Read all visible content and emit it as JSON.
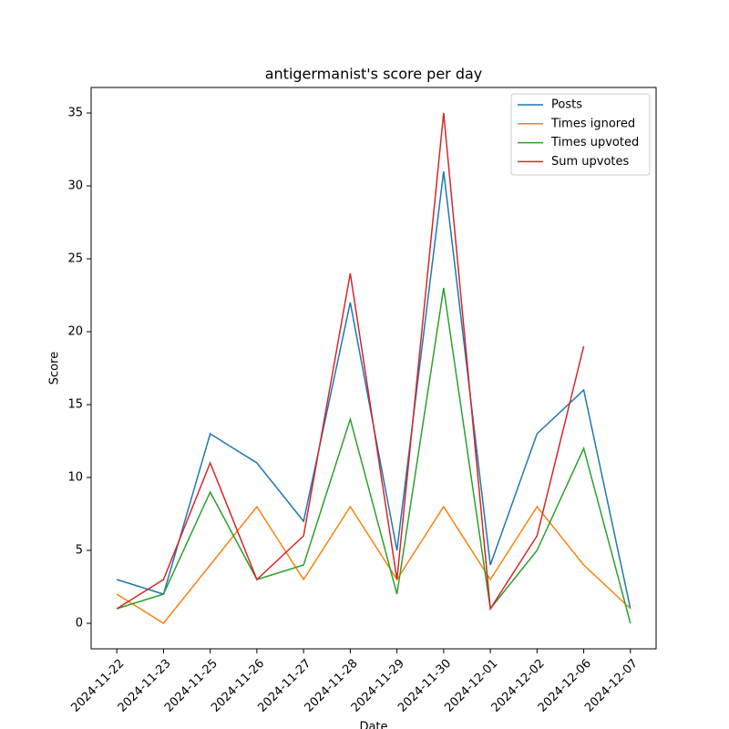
{
  "chart_data": {
    "type": "line",
    "title": "antigermanist's score per day",
    "xlabel": "Date",
    "ylabel": "Score",
    "categories": [
      "2024-11-22",
      "2024-11-23",
      "2024-11-25",
      "2024-11-26",
      "2024-11-27",
      "2024-11-28",
      "2024-11-29",
      "2024-11-30",
      "2024-12-01",
      "2024-12-02",
      "2024-12-06",
      "2024-12-07"
    ],
    "series": [
      {
        "name": "Posts",
        "color": "#1f77b4",
        "values": [
          3,
          2,
          13,
          11,
          7,
          22,
          5,
          31,
          4,
          13,
          16,
          1
        ]
      },
      {
        "name": "Times ignored",
        "color": "#ff7f0e",
        "values": [
          2,
          0,
          4,
          8,
          3,
          8,
          3,
          8,
          3,
          8,
          4,
          1
        ]
      },
      {
        "name": "Times upvoted",
        "color": "#2ca02c",
        "values": [
          1,
          2,
          9,
          3,
          4,
          14,
          2,
          23,
          1,
          5,
          12,
          0
        ]
      },
      {
        "name": "Sum upvotes",
        "color": "#d62728",
        "values": [
          1,
          3,
          11,
          3,
          6,
          24,
          3,
          35,
          1,
          6,
          19,
          null
        ]
      }
    ],
    "ylim": [
      -1.75,
      36.75
    ],
    "yticks": [
      0,
      5,
      10,
      15,
      20,
      25,
      30,
      35
    ],
    "legend": "upper right"
  }
}
